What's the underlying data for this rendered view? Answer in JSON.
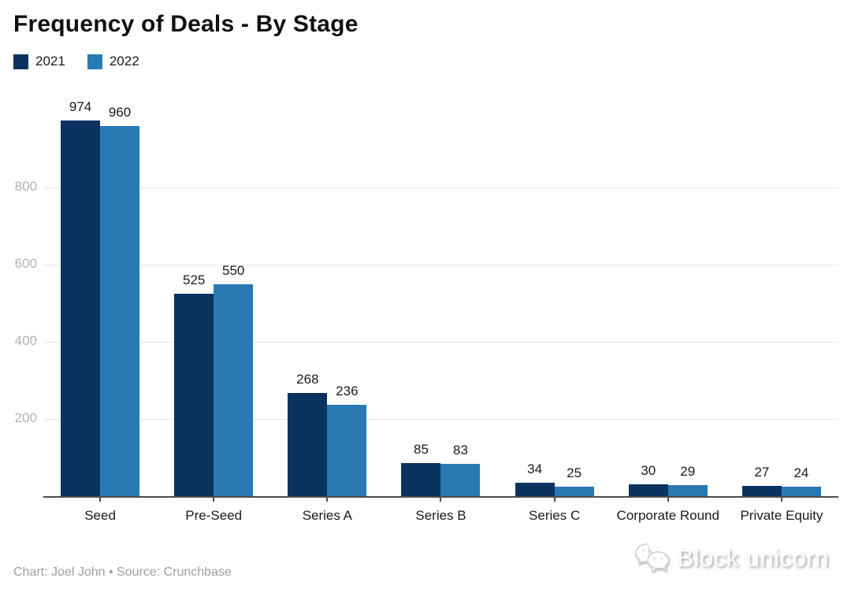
{
  "chart": {
    "title": "Frequency of Deals - By Stage"
  },
  "chart_data": {
    "type": "bar",
    "title": "Frequency of Deals - By Stage",
    "categories": [
      "Seed",
      "Pre-Seed",
      "Series A",
      "Series B",
      "Series C",
      "Corporate Round",
      "Private Equity"
    ],
    "series": [
      {
        "name": "2021",
        "color": "#0b3360",
        "values": [
          974,
          525,
          268,
          85,
          34,
          30,
          27
        ]
      },
      {
        "name": "2022",
        "color": "#2979b5",
        "values": [
          960,
          550,
          236,
          83,
          25,
          29,
          24
        ]
      }
    ],
    "xlabel": "",
    "ylabel": "",
    "ylim": [
      0,
      1000
    ],
    "yticks": [
      200,
      400,
      600,
      800
    ],
    "grid": true,
    "legend_position": "top-left",
    "value_labels": true
  },
  "footer": {
    "attribution": "Chart: Joel John • Source: Crunchbase",
    "watermark_text": "Block unicorn"
  },
  "colors": {
    "series_2021": "#0b3360",
    "series_2022": "#2979b5",
    "gridline": "#e7e7e7",
    "axis_line": "#4d4d4d",
    "y_tick_label": "#b2b2b2",
    "category_label": "#1a1a1a",
    "value_label": "#1a1a1a",
    "attribution_text": "#9e9e9e",
    "background": "#ffffff"
  }
}
